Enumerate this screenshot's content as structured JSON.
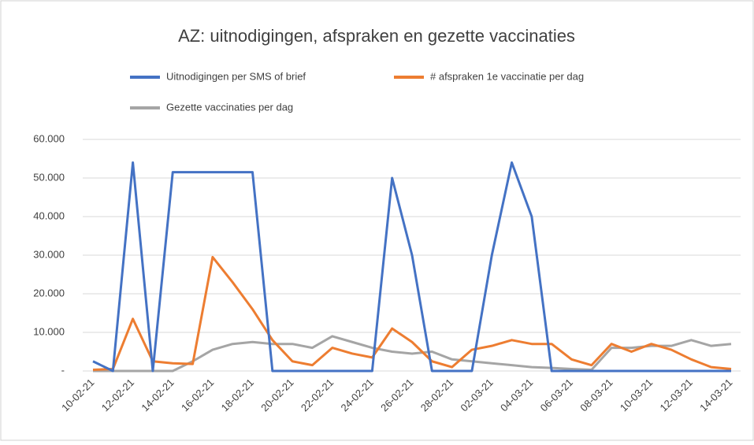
{
  "chart_data": {
    "type": "line",
    "title": "AZ: uitnodigingen, afspraken en gezette vaccinaties",
    "categories": [
      "10-02-21",
      null,
      "12-02-21",
      null,
      "14-02-21",
      null,
      "16-02-21",
      null,
      "18-02-21",
      null,
      "20-02-21",
      null,
      "22-02-21",
      null,
      "24-02-21",
      null,
      "26-02-21",
      null,
      "28-02-21",
      null,
      "02-03-21",
      null,
      "04-03-21",
      null,
      "06-03-21",
      null,
      "08-03-21",
      null,
      "10-03-21",
      null,
      "12-03-21",
      null,
      "14-03-21"
    ],
    "series": [
      {
        "name": "Uitnodigingen per SMS of brief",
        "color": "#4472c4",
        "values": [
          2500,
          0,
          54000,
          0,
          51500,
          51500,
          51500,
          51500,
          51500,
          0,
          0,
          0,
          0,
          0,
          0,
          50000,
          30000,
          0,
          0,
          0,
          30000,
          54000,
          40000,
          0,
          0,
          0,
          0,
          0,
          0,
          0,
          0,
          0,
          0
        ]
      },
      {
        "name": "# afspraken 1e vaccinatie per dag",
        "color": "#ed7d31",
        "values": [
          300,
          500,
          13500,
          2500,
          2000,
          1800,
          29500,
          23000,
          16000,
          8000,
          2500,
          1500,
          6000,
          4500,
          3500,
          11000,
          7500,
          2500,
          1000,
          5500,
          6500,
          8000,
          7000,
          7000,
          3000,
          1500,
          7000,
          5000,
          7000,
          5500,
          3000,
          1000,
          500
        ]
      },
      {
        "name": "Gezette vaccinaties per dag",
        "color": "#a5a5a5",
        "values": [
          0,
          0,
          0,
          0,
          0,
          2500,
          5500,
          7000,
          7500,
          7000,
          7000,
          6000,
          9000,
          7500,
          6000,
          5000,
          4500,
          5000,
          3000,
          2500,
          2000,
          1500,
          1000,
          800,
          500,
          300,
          6000,
          6000,
          6500,
          6500,
          8000,
          6500,
          7000
        ]
      }
    ],
    "ylim": [
      0,
      60000
    ],
    "yticks": [
      {
        "value": 0,
        "label": "-"
      },
      {
        "value": 10000,
        "label": "10.000"
      },
      {
        "value": 20000,
        "label": "20.000"
      },
      {
        "value": 30000,
        "label": "30.000"
      },
      {
        "value": 40000,
        "label": "40.000"
      },
      {
        "value": 50000,
        "label": "50.000"
      },
      {
        "value": 60000,
        "label": "60.000"
      }
    ],
    "grid": true
  }
}
